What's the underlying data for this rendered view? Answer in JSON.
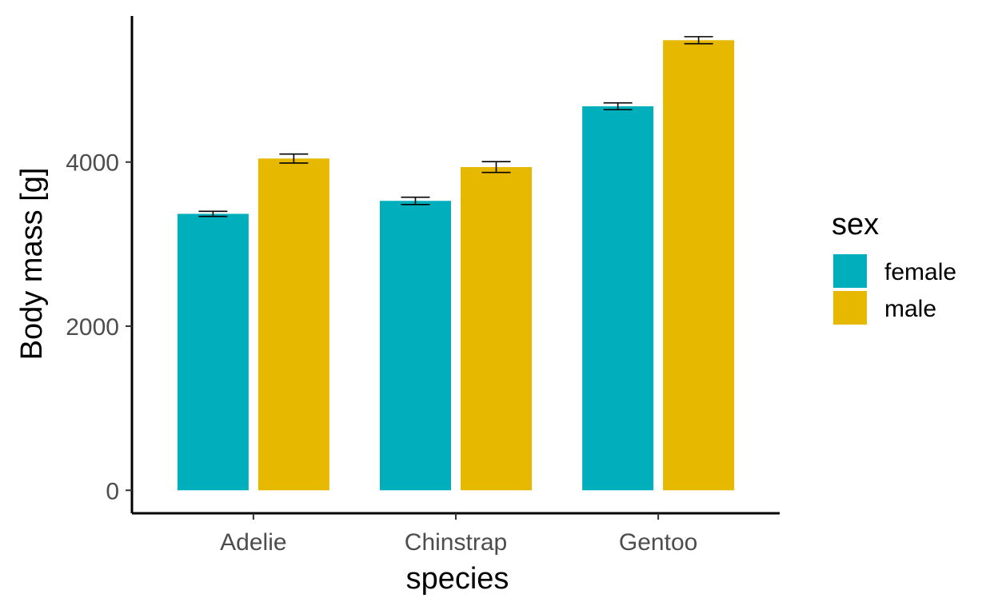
{
  "chart_data": {
    "type": "bar",
    "categories": [
      "Adelie",
      "Chinstrap",
      "Gentoo"
    ],
    "series": [
      {
        "name": "female",
        "color": "#00AFBB",
        "values": [
          3369,
          3527,
          4680
        ],
        "error_low": [
          3338,
          3483,
          4639
        ],
        "error_high": [
          3400,
          3571,
          4721
        ]
      },
      {
        "name": "male",
        "color": "#E7B800",
        "values": [
          4043,
          3939,
          5485
        ],
        "error_low": [
          3988,
          3873,
          5442
        ],
        "error_high": [
          4098,
          4005,
          5528
        ]
      }
    ],
    "xlabel": "species",
    "ylabel": "Body mass [g]",
    "ylim": [
      -280,
      5780
    ],
    "yticks": [
      0,
      2000,
      4000
    ],
    "yticklabels": [
      "0",
      "2000",
      "4000"
    ],
    "legend": {
      "title": "sex",
      "position": "right",
      "labels": [
        "female",
        "male"
      ]
    },
    "grid": false
  }
}
